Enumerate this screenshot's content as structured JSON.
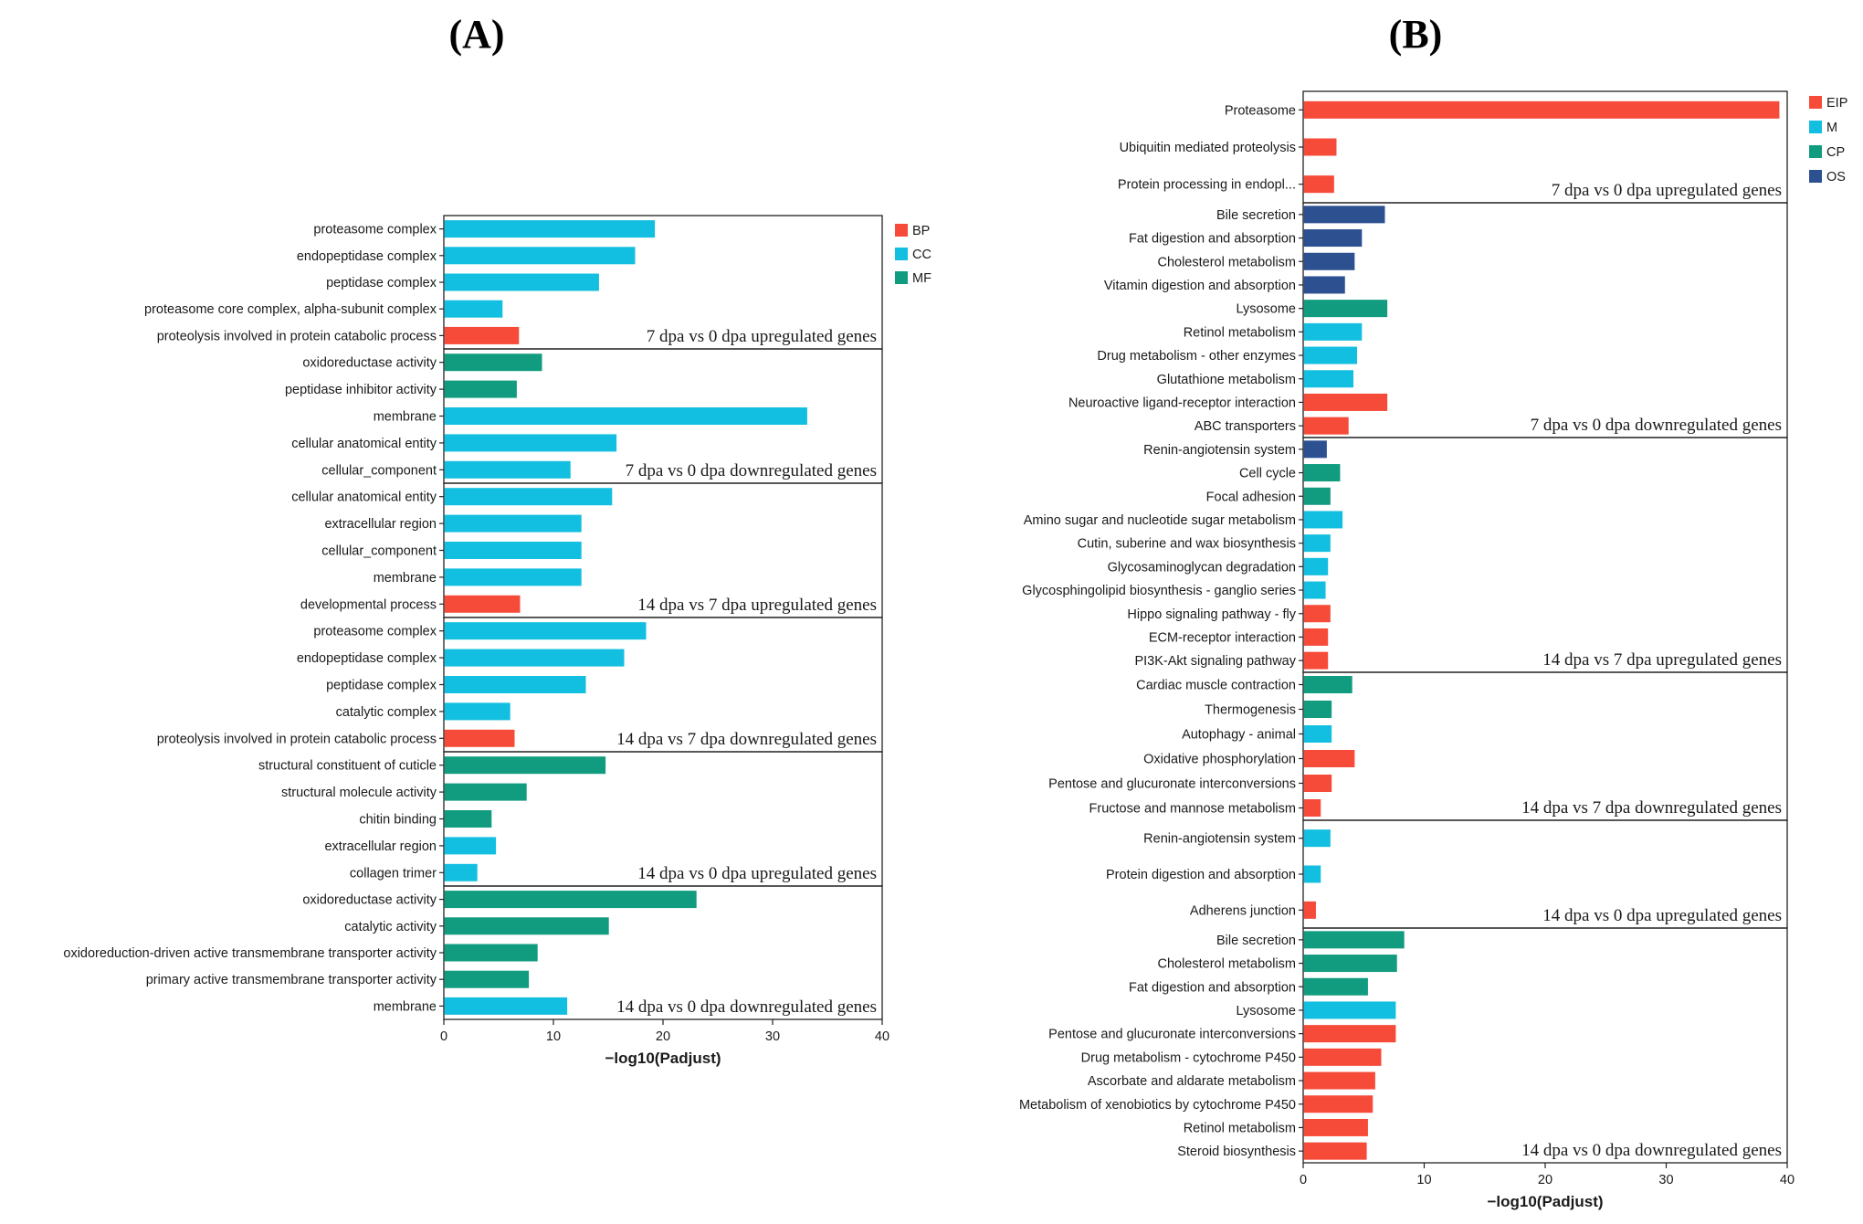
{
  "colors": {
    "BP": "#F74B3A",
    "CC": "#13BFE0",
    "MF": "#119C7F",
    "EIP": "#F74B3A",
    "M": "#13BFE0",
    "CP": "#119C7F",
    "OS": "#2C5090"
  },
  "chart_data": [
    {
      "type": "bar",
      "orientation": "horizontal",
      "panel_title": "(A)",
      "xlabel": "−log10(Padjust)",
      "xlim": [
        0,
        40
      ],
      "xticks": [
        0,
        10,
        20,
        30,
        40
      ],
      "legend": [
        {
          "key": "BP",
          "label": "BP"
        },
        {
          "key": "CC",
          "label": "CC"
        },
        {
          "key": "MF",
          "label": "MF"
        }
      ],
      "legend_position": "right",
      "groups": [
        {
          "label": "7 dpa vs 0 dpa upregulated genes",
          "bars": [
            {
              "name": "proteasome complex",
              "value": 19.2,
              "category": "CC"
            },
            {
              "name": "endopeptidase complex",
              "value": 17.4,
              "category": "CC"
            },
            {
              "name": "peptidase complex",
              "value": 14.1,
              "category": "CC"
            },
            {
              "name": "proteasome core complex, alpha-subunit complex",
              "value": 5.3,
              "category": "CC"
            },
            {
              "name": "proteolysis involved in protein catabolic process",
              "value": 6.8,
              "category": "BP"
            }
          ]
        },
        {
          "label": "7 dpa vs 0 dpa downregulated genes",
          "bars": [
            {
              "name": "oxidoreductase activity",
              "value": 8.9,
              "category": "MF"
            },
            {
              "name": "peptidase inhibitor activity",
              "value": 6.6,
              "category": "MF"
            },
            {
              "name": "membrane",
              "value": 33.1,
              "category": "CC"
            },
            {
              "name": "cellular anatomical entity",
              "value": 15.7,
              "category": "CC"
            },
            {
              "name": "cellular_component",
              "value": 11.5,
              "category": "CC"
            }
          ]
        },
        {
          "label": "14 dpa vs 7 dpa upregulated genes",
          "bars": [
            {
              "name": "cellular anatomical entity",
              "value": 15.3,
              "category": "CC"
            },
            {
              "name": "extracellular region",
              "value": 12.5,
              "category": "CC"
            },
            {
              "name": "cellular_component",
              "value": 12.5,
              "category": "CC"
            },
            {
              "name": "membrane",
              "value": 12.5,
              "category": "CC"
            },
            {
              "name": "developmental process",
              "value": 6.9,
              "category": "BP"
            }
          ]
        },
        {
          "label": "14 dpa vs 7 dpa downregulated genes",
          "bars": [
            {
              "name": "proteasome complex",
              "value": 18.4,
              "category": "CC"
            },
            {
              "name": "endopeptidase complex",
              "value": 16.4,
              "category": "CC"
            },
            {
              "name": "peptidase complex",
              "value": 12.9,
              "category": "CC"
            },
            {
              "name": "catalytic complex",
              "value": 6.0,
              "category": "CC"
            },
            {
              "name": "proteolysis involved in protein catabolic process",
              "value": 6.4,
              "category": "BP"
            }
          ]
        },
        {
          "label": "14 dpa vs 0 dpa upregulated genes",
          "bars": [
            {
              "name": "structural constituent of cuticle",
              "value": 14.7,
              "category": "MF"
            },
            {
              "name": "structural molecule activity",
              "value": 7.5,
              "category": "MF"
            },
            {
              "name": "chitin binding",
              "value": 4.3,
              "category": "MF"
            },
            {
              "name": "extracellular region",
              "value": 4.7,
              "category": "CC"
            },
            {
              "name": "collagen trimer",
              "value": 3.0,
              "category": "CC"
            }
          ]
        },
        {
          "label": "14 dpa vs 0 dpa downregulated genes",
          "bars": [
            {
              "name": "oxidoreductase activity",
              "value": 23.0,
              "category": "MF"
            },
            {
              "name": "catalytic activity",
              "value": 15.0,
              "category": "MF"
            },
            {
              "name": "oxidoreduction-driven active transmembrane transporter activity",
              "value": 8.5,
              "category": "MF"
            },
            {
              "name": "primary active transmembrane transporter activity",
              "value": 7.7,
              "category": "MF"
            },
            {
              "name": "membrane",
              "value": 11.2,
              "category": "CC"
            }
          ]
        }
      ]
    },
    {
      "type": "bar",
      "orientation": "horizontal",
      "panel_title": "(B)",
      "xlabel": "−log10(Padjust)",
      "xlim": [
        0,
        40
      ],
      "xticks": [
        0,
        10,
        20,
        30,
        40
      ],
      "legend": [
        {
          "key": "EIP",
          "label": "EIP"
        },
        {
          "key": "M",
          "label": "M"
        },
        {
          "key": "CP",
          "label": "CP"
        },
        {
          "key": "OS",
          "label": "OS"
        }
      ],
      "legend_position": "right",
      "groups": [
        {
          "label": "7 dpa vs 0 dpa upregulated genes",
          "bars": [
            {
              "name": "Proteasome",
              "value": 39.3,
              "category": "EIP"
            },
            {
              "name": "Ubiquitin mediated proteolysis",
              "value": 2.7,
              "category": "EIP"
            },
            {
              "name": "Protein processing in endopl...",
              "value": 2.5,
              "category": "EIP"
            }
          ]
        },
        {
          "label": "7 dpa vs 0 dpa downregulated genes",
          "bars": [
            {
              "name": "Bile secretion",
              "value": 6.7,
              "category": "OS"
            },
            {
              "name": "Fat digestion and absorption",
              "value": 4.8,
              "category": "OS"
            },
            {
              "name": "Cholesterol metabolism",
              "value": 4.2,
              "category": "OS"
            },
            {
              "name": "Vitamin digestion and absorption",
              "value": 3.4,
              "category": "OS"
            },
            {
              "name": "Lysosome",
              "value": 6.9,
              "category": "CP"
            },
            {
              "name": "Retinol metabolism",
              "value": 4.8,
              "category": "M"
            },
            {
              "name": "Drug metabolism - other enzymes",
              "value": 4.4,
              "category": "M"
            },
            {
              "name": "Glutathione metabolism",
              "value": 4.1,
              "category": "M"
            },
            {
              "name": "Neuroactive ligand-receptor interaction",
              "value": 6.9,
              "category": "EIP"
            },
            {
              "name": "ABC transporters",
              "value": 3.7,
              "category": "EIP"
            }
          ]
        },
        {
          "label": "14 dpa vs 7 dpa upregulated genes",
          "bars": [
            {
              "name": "Renin-angiotensin system",
              "value": 1.9,
              "category": "OS"
            },
            {
              "name": "Cell cycle",
              "value": 3.0,
              "category": "CP"
            },
            {
              "name": "Focal adhesion",
              "value": 2.2,
              "category": "CP"
            },
            {
              "name": "Amino sugar and nucleotide sugar metabolism",
              "value": 3.2,
              "category": "M"
            },
            {
              "name": "Cutin, suberine and wax biosynthesis",
              "value": 2.2,
              "category": "M"
            },
            {
              "name": "Glycosaminoglycan degradation",
              "value": 2.0,
              "category": "M"
            },
            {
              "name": "Glycosphingolipid biosynthesis - ganglio series",
              "value": 1.8,
              "category": "M"
            },
            {
              "name": "Hippo signaling pathway - fly",
              "value": 2.2,
              "category": "EIP"
            },
            {
              "name": "ECM-receptor interaction",
              "value": 2.0,
              "category": "EIP"
            },
            {
              "name": "PI3K-Akt signaling pathway",
              "value": 2.0,
              "category": "EIP"
            }
          ]
        },
        {
          "label": "14 dpa vs 7 dpa downregulated genes",
          "bars": [
            {
              "name": "Cardiac muscle contraction",
              "value": 4.0,
              "category": "CP"
            },
            {
              "name": "Thermogenesis",
              "value": 2.3,
              "category": "CP"
            },
            {
              "name": "Autophagy - animal",
              "value": 2.3,
              "category": "M"
            },
            {
              "name": "Oxidative phosphorylation",
              "value": 4.2,
              "category": "EIP"
            },
            {
              "name": "Pentose and glucuronate interconversions",
              "value": 2.3,
              "category": "EIP"
            },
            {
              "name": "Fructose and mannose metabolism",
              "value": 1.4,
              "category": "EIP"
            }
          ]
        },
        {
          "label": "14 dpa vs 0 dpa upregulated genes",
          "bars": [
            {
              "name": "Renin-angiotensin system",
              "value": 2.2,
              "category": "M"
            },
            {
              "name": "Protein digestion and absorption",
              "value": 1.4,
              "category": "M"
            },
            {
              "name": "Adherens junction",
              "value": 1.0,
              "category": "EIP"
            }
          ]
        },
        {
          "label": "14 dpa vs 0 dpa downregulated genes",
          "bars": [
            {
              "name": "Bile secretion",
              "value": 8.3,
              "category": "CP"
            },
            {
              "name": "Cholesterol metabolism",
              "value": 7.7,
              "category": "CP"
            },
            {
              "name": "Fat digestion and absorption",
              "value": 5.3,
              "category": "CP"
            },
            {
              "name": "Lysosome",
              "value": 7.6,
              "category": "M"
            },
            {
              "name": "Pentose and glucuronate interconversions",
              "value": 7.6,
              "category": "EIP"
            },
            {
              "name": "Drug metabolism - cytochrome P450",
              "value": 6.4,
              "category": "EIP"
            },
            {
              "name": "Ascorbate and aldarate metabolism",
              "value": 5.9,
              "category": "EIP"
            },
            {
              "name": "Metabolism of xenobiotics by cytochrome P450",
              "value": 5.7,
              "category": "EIP"
            },
            {
              "name": "Retinol metabolism",
              "value": 5.3,
              "category": "EIP"
            },
            {
              "name": "Steroid biosynthesis",
              "value": 5.2,
              "category": "EIP"
            }
          ]
        }
      ]
    }
  ]
}
